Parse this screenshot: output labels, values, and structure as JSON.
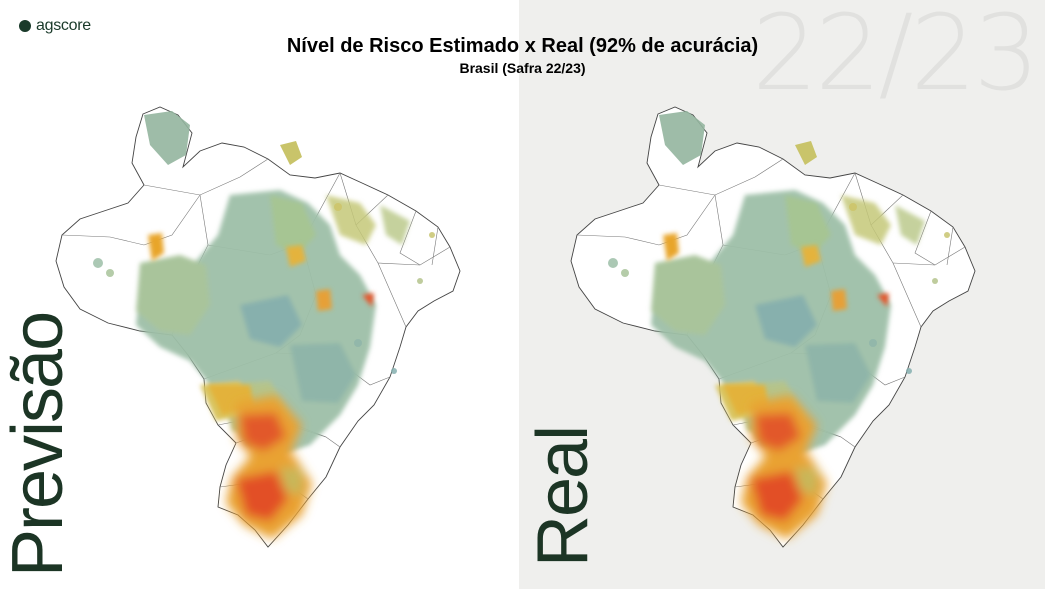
{
  "brand": {
    "name": "agscore"
  },
  "header": {
    "title": "Nível de Risco Estimado x Real (92% de acurácia)",
    "subtitle": "Brasil (Safra 22/23)"
  },
  "background_season": "22/23",
  "panels": {
    "left": {
      "label": "Previsão"
    },
    "right": {
      "label": "Real"
    }
  },
  "colors": {
    "brand": "#1a3a2a",
    "risk_low": "#8fb6a9",
    "risk_low_mid": "#a7c69a",
    "risk_mid": "#d8c86a",
    "risk_mid_high": "#e9a832",
    "risk_high": "#e5542a",
    "right_panel_bg": "#efefed"
  }
}
